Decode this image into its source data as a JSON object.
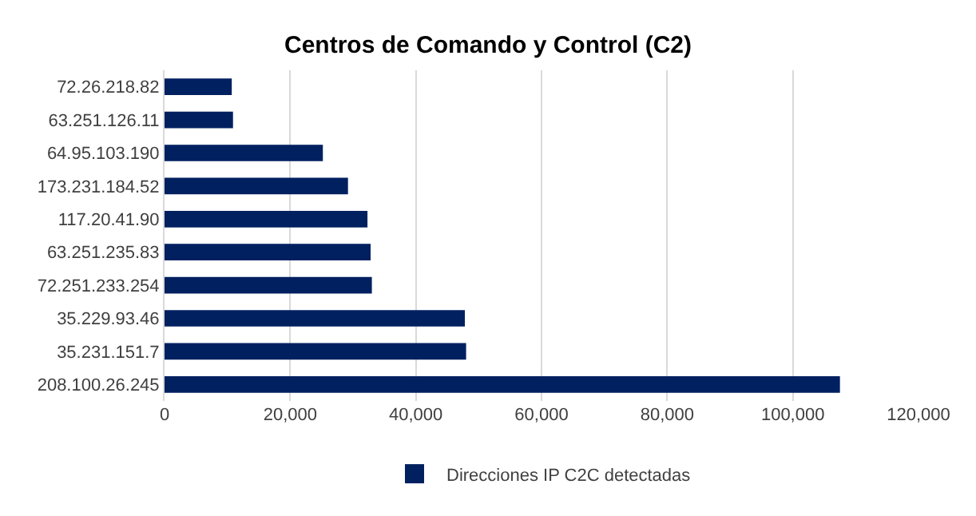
{
  "chart_data": {
    "type": "bar",
    "orientation": "horizontal",
    "title": "Centros de Comando y Control (C2)",
    "categories": [
      "72.26.218.82",
      "63.251.126.11",
      "64.95.103.190",
      "173.231.184.52",
      "117.20.41.90",
      "63.251.235.83",
      "72.251.233.254",
      "35.229.93.46",
      "35.231.151.7",
      "208.100.26.245"
    ],
    "series": [
      {
        "name": "Direcciones IP C2C detectadas",
        "color": "#002060",
        "values": [
          10700,
          10900,
          25200,
          29200,
          32300,
          32800,
          33000,
          47800,
          48000,
          107500
        ]
      }
    ],
    "xlim": [
      0,
      120000
    ],
    "xticks": [
      {
        "value": 0,
        "label": "0"
      },
      {
        "value": 20000,
        "label": "20,000"
      },
      {
        "value": 40000,
        "label": "40,000"
      },
      {
        "value": 60000,
        "label": "60,000"
      },
      {
        "value": 80000,
        "label": "80,000"
      },
      {
        "value": 100000,
        "label": "100,000"
      },
      {
        "value": 120000,
        "label": "120,000"
      }
    ],
    "grid": "x",
    "legend": "bottom"
  }
}
